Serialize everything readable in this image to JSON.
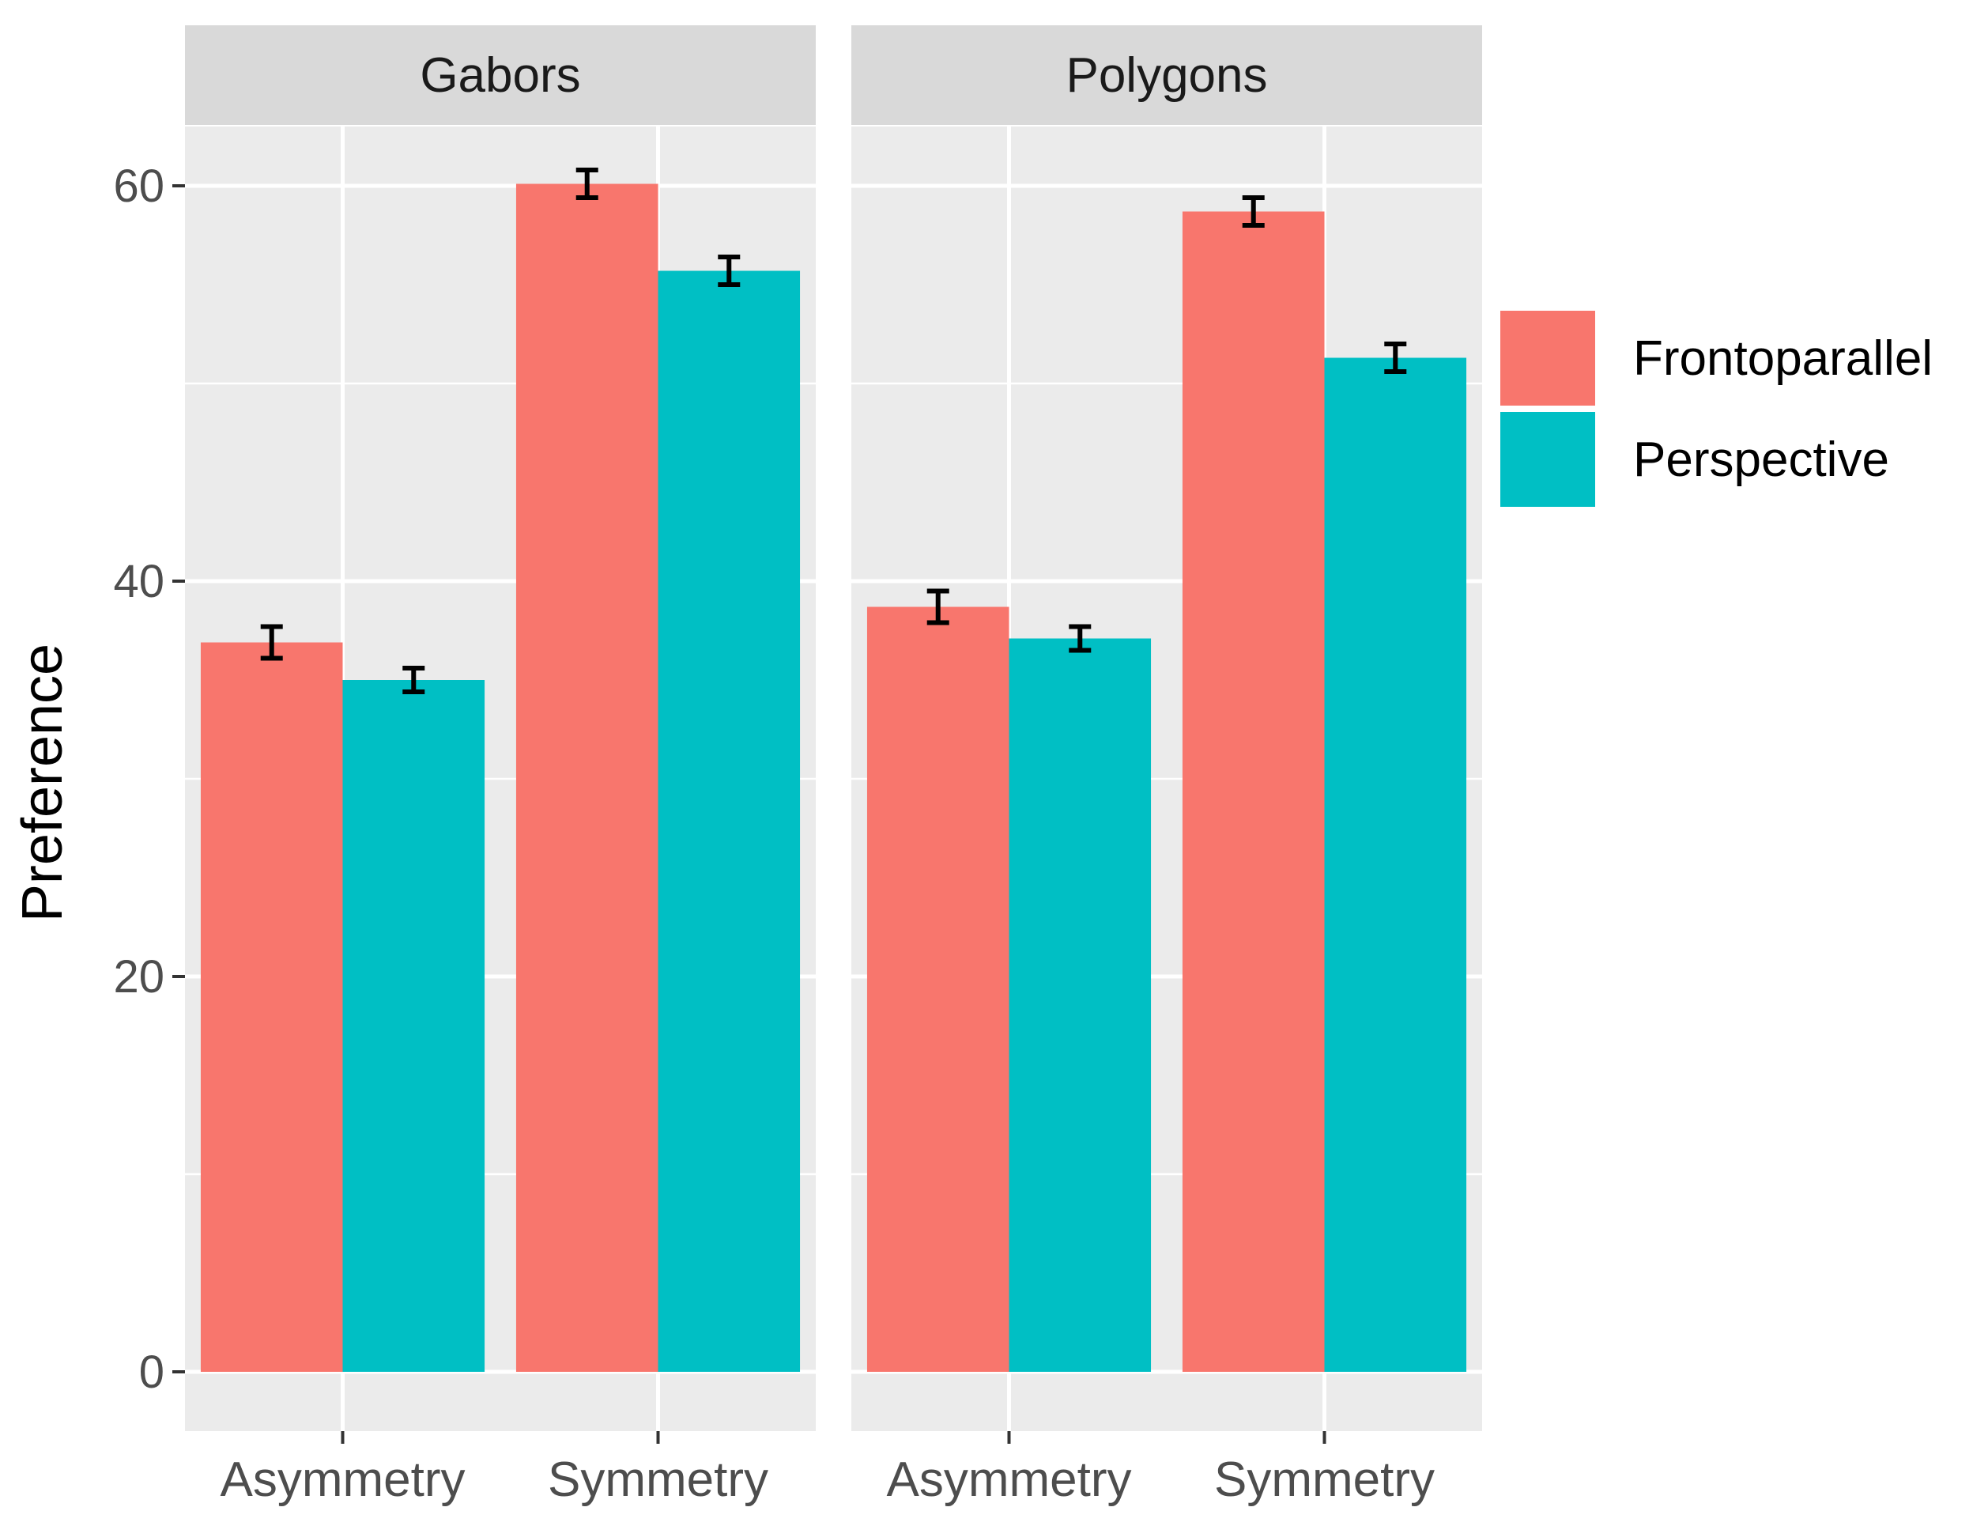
{
  "chart_data": {
    "type": "bar",
    "facets": [
      "Gabors",
      "Polygons"
    ],
    "categories": [
      "Asymmetry",
      "Symmetry"
    ],
    "ylabel": "Preference",
    "xlabel": "",
    "ylim": [
      -3,
      63
    ],
    "yticks": [
      0,
      20,
      40,
      60
    ],
    "legend": {
      "position": "right"
    },
    "series": [
      {
        "name": "Frontoparallel",
        "color": "#f8766d",
        "values": {
          "Gabors": [
            36.9,
            60.1
          ],
          "Polygons": [
            38.7,
            58.7
          ]
        },
        "errors": {
          "Gabors": [
            0.8,
            0.7
          ],
          "Polygons": [
            0.8,
            0.7
          ]
        }
      },
      {
        "name": "Perspective",
        "color": "#00bfc4",
        "values": {
          "Gabors": [
            35.0,
            55.7
          ],
          "Polygons": [
            37.1,
            51.3
          ]
        },
        "errors": {
          "Gabors": [
            0.6,
            0.7
          ],
          "Polygons": [
            0.6,
            0.7
          ]
        }
      }
    ]
  }
}
